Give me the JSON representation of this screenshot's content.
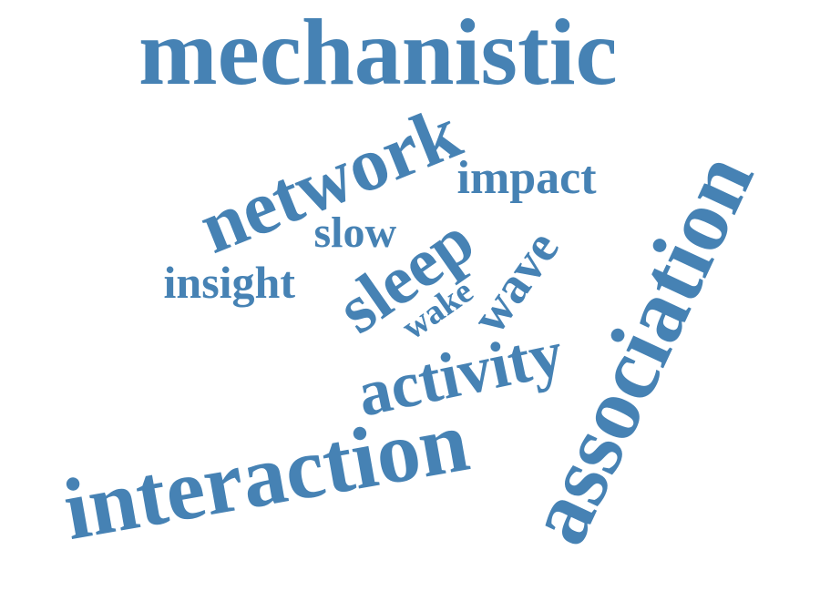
{
  "word_color": "#4682b4",
  "words": {
    "mechanistic": "mechanistic",
    "network": "network",
    "impact": "impact",
    "slow": "slow",
    "insight": "insight",
    "sleep": "sleep",
    "wake": "wake",
    "wave": "wave",
    "activity": "activity",
    "interaction": "interaction",
    "association": "association"
  }
}
